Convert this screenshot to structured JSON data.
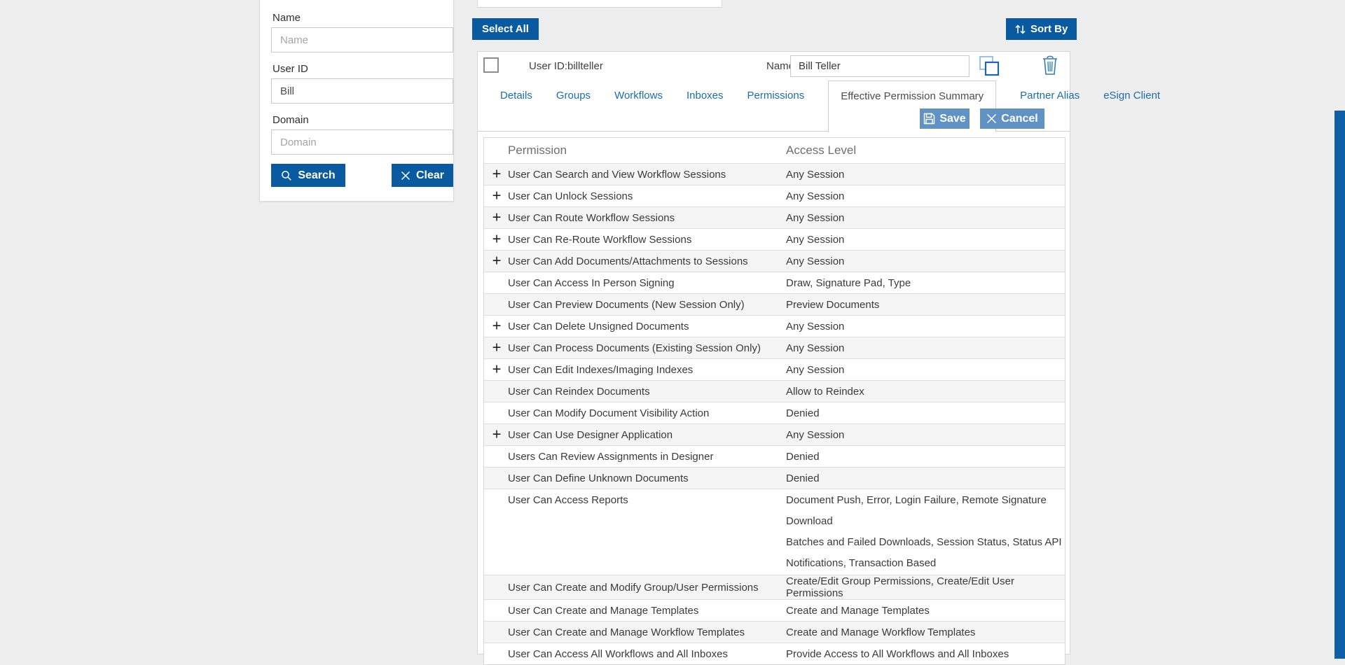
{
  "colors": {
    "primary_blue": "#0a5a9f",
    "muted_blue": "#6092c4",
    "link_blue": "#1b6db0",
    "required_red": "#d93025",
    "row_alt_bg": "#f5f5f6",
    "right_rail_blue": "#0d5fa6"
  },
  "icons": {
    "search": "magnifier",
    "clear": "x-cross",
    "sort_by": "up-down-arrows",
    "save": "floppy-disk",
    "cancel": "x-cross",
    "copy_user": "overlapping-squares",
    "delete_user": "trash-can",
    "expand_row": "plus"
  },
  "search_panel": {
    "name_label": "Name",
    "name_placeholder": "Name",
    "user_id_label": "User ID",
    "user_id_value": "Bill",
    "domain_label": "Domain",
    "domain_placeholder": "Domain",
    "search_button_label": "Search",
    "clear_button_label": "Clear"
  },
  "toolbar": {
    "select_all_label": "Select All",
    "sort_by_label": "Sort By"
  },
  "user_editor": {
    "user_id_label": "User ID:",
    "user_id_value": "billteller",
    "name_label": "Name:",
    "required_marker": "*",
    "name_value": "Bill Teller",
    "save_label": "Save",
    "cancel_label": "Cancel",
    "tabs": [
      {
        "label": "Details",
        "active": false
      },
      {
        "label": "Groups",
        "active": false
      },
      {
        "label": "Workflows",
        "active": false
      },
      {
        "label": "Inboxes",
        "active": false
      },
      {
        "label": "Permissions",
        "active": false
      },
      {
        "label": "Effective Permission Summary",
        "active": true
      },
      {
        "label": "Partner Alias",
        "active": false
      },
      {
        "label": "eSign Client",
        "active": false
      }
    ]
  },
  "permissions_table": {
    "columns": [
      "Permission",
      "Access Level"
    ],
    "rows": [
      {
        "expandable": true,
        "permission": "User Can Search and View Workflow Sessions",
        "access_levels": [
          "Any Session"
        ]
      },
      {
        "expandable": true,
        "permission": "User Can Unlock Sessions",
        "access_levels": [
          "Any Session"
        ]
      },
      {
        "expandable": true,
        "permission": "User Can Route Workflow Sessions",
        "access_levels": [
          "Any Session"
        ]
      },
      {
        "expandable": true,
        "permission": "User Can Re-Route Workflow Sessions",
        "access_levels": [
          "Any Session"
        ]
      },
      {
        "expandable": true,
        "permission": "User Can Add Documents/Attachments to Sessions",
        "access_levels": [
          "Any Session"
        ]
      },
      {
        "expandable": false,
        "permission": "User Can Access In Person Signing",
        "access_levels": [
          "Draw, Signature Pad, Type"
        ]
      },
      {
        "expandable": false,
        "permission": "User Can Preview Documents (New Session Only)",
        "access_levels": [
          "Preview Documents"
        ]
      },
      {
        "expandable": true,
        "permission": "User Can Delete Unsigned Documents",
        "access_levels": [
          "Any Session"
        ]
      },
      {
        "expandable": true,
        "permission": "User Can Process Documents (Existing Session Only)",
        "access_levels": [
          "Any Session"
        ]
      },
      {
        "expandable": true,
        "permission": "User Can Edit Indexes/Imaging Indexes",
        "access_levels": [
          "Any Session"
        ]
      },
      {
        "expandable": false,
        "permission": "User Can Reindex Documents",
        "access_levels": [
          "Allow to Reindex"
        ]
      },
      {
        "expandable": false,
        "permission": "User Can Modify Document Visibility Action",
        "access_levels": [
          "Denied"
        ]
      },
      {
        "expandable": true,
        "permission": "User Can Use Designer Application",
        "access_levels": [
          "Any Session"
        ]
      },
      {
        "expandable": false,
        "permission": "Users Can Review Assignments in Designer",
        "access_levels": [
          "Denied"
        ]
      },
      {
        "expandable": false,
        "permission": "User Can Define Unknown Documents",
        "access_levels": [
          "Denied"
        ]
      },
      {
        "expandable": false,
        "permission": "User Can Access Reports",
        "access_levels": [
          "Document Push, Error, Login Failure, Remote Signature Download",
          "Batches and Failed Downloads, Session Status, Status API",
          "Notifications, Transaction Based"
        ]
      },
      {
        "expandable": false,
        "permission": "User Can Create and Modify Group/User Permissions",
        "access_levels": [
          "Create/Edit Group Permissions, Create/Edit User Permissions"
        ]
      },
      {
        "expandable": false,
        "permission": "User Can Create and Manage Templates",
        "access_levels": [
          "Create and Manage Templates"
        ]
      },
      {
        "expandable": false,
        "permission": "User Can Create and Manage Workflow Templates",
        "access_levels": [
          "Create and Manage Workflow Templates"
        ]
      },
      {
        "expandable": false,
        "permission": "User Can Access All Workflows and All Inboxes",
        "access_levels": [
          "Provide Access to All Workflows and All Inboxes"
        ]
      }
    ]
  }
}
